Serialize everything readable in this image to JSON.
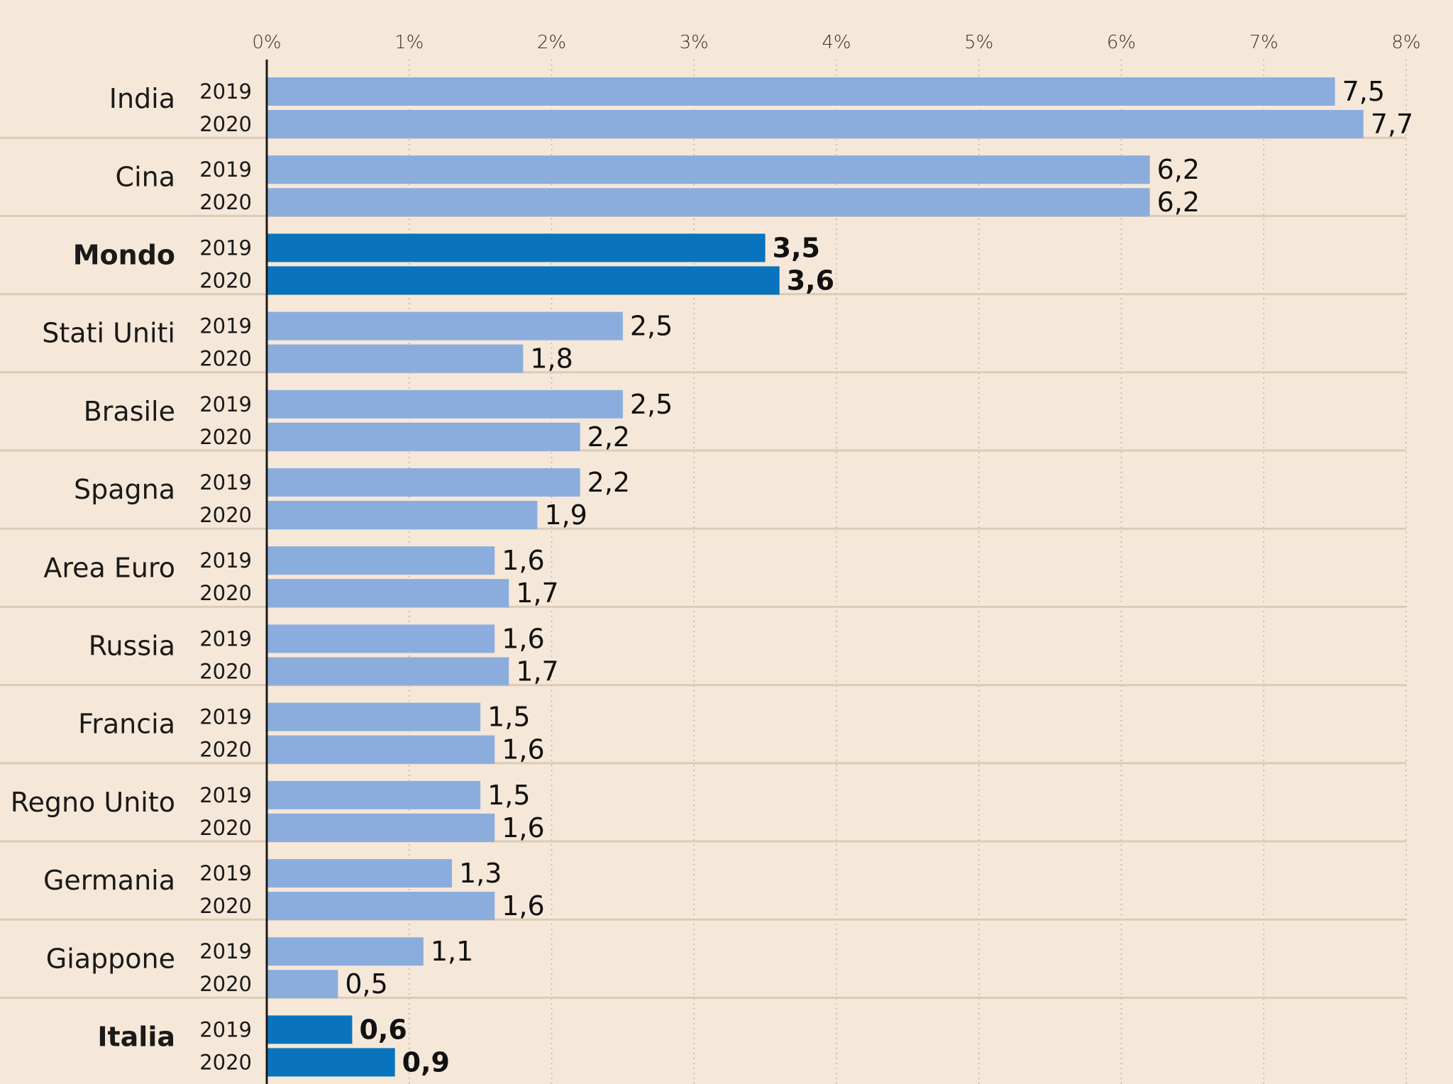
{
  "chart_data": {
    "type": "bar",
    "orientation": "horizontal",
    "xlim": [
      0,
      8
    ],
    "x_ticks": [
      "0%",
      "1%",
      "2%",
      "3%",
      "4%",
      "5%",
      "6%",
      "7%",
      "8%"
    ],
    "series_names": [
      "2019",
      "2020"
    ],
    "colors": {
      "normal": "#8badde",
      "highlight": "#0a73bd",
      "background": "#f6e8d8",
      "axis": "#1a1a1a",
      "separator": "#dccbb6",
      "grid": "#c4b6a4"
    },
    "groups": [
      {
        "label": "India",
        "highlight": false,
        "values": [
          7.5,
          7.7
        ],
        "value_labels": [
          "7,5",
          "7,7"
        ]
      },
      {
        "label": "Cina",
        "highlight": false,
        "values": [
          6.2,
          6.2
        ],
        "value_labels": [
          "6,2",
          "6,2"
        ]
      },
      {
        "label": "Mondo",
        "highlight": true,
        "values": [
          3.5,
          3.6
        ],
        "value_labels": [
          "3,5",
          "3,6"
        ]
      },
      {
        "label": "Stati Uniti",
        "highlight": false,
        "values": [
          2.5,
          1.8
        ],
        "value_labels": [
          "2,5",
          "1,8"
        ]
      },
      {
        "label": "Brasile",
        "highlight": false,
        "values": [
          2.5,
          2.2
        ],
        "value_labels": [
          "2,5",
          "2,2"
        ]
      },
      {
        "label": "Spagna",
        "highlight": false,
        "values": [
          2.2,
          1.9
        ],
        "value_labels": [
          "2,2",
          "1,9"
        ]
      },
      {
        "label": "Area Euro",
        "highlight": false,
        "values": [
          1.6,
          1.7
        ],
        "value_labels": [
          "1,6",
          "1,7"
        ]
      },
      {
        "label": "Russia",
        "highlight": false,
        "values": [
          1.6,
          1.7
        ],
        "value_labels": [
          "1,6",
          "1,7"
        ]
      },
      {
        "label": "Francia",
        "highlight": false,
        "values": [
          1.5,
          1.6
        ],
        "value_labels": [
          "1,5",
          "1,6"
        ]
      },
      {
        "label": "Regno Unito",
        "highlight": false,
        "values": [
          1.5,
          1.6
        ],
        "value_labels": [
          "1,5",
          "1,6"
        ]
      },
      {
        "label": "Germania",
        "highlight": false,
        "values": [
          1.3,
          1.6
        ],
        "value_labels": [
          "1,3",
          "1,6"
        ]
      },
      {
        "label": "Giappone",
        "highlight": false,
        "values": [
          1.1,
          0.5
        ],
        "value_labels": [
          "1,1",
          "0,5"
        ]
      },
      {
        "label": "Italia",
        "highlight": true,
        "values": [
          0.6,
          0.9
        ],
        "value_labels": [
          "0,6",
          "0,9"
        ]
      }
    ]
  }
}
